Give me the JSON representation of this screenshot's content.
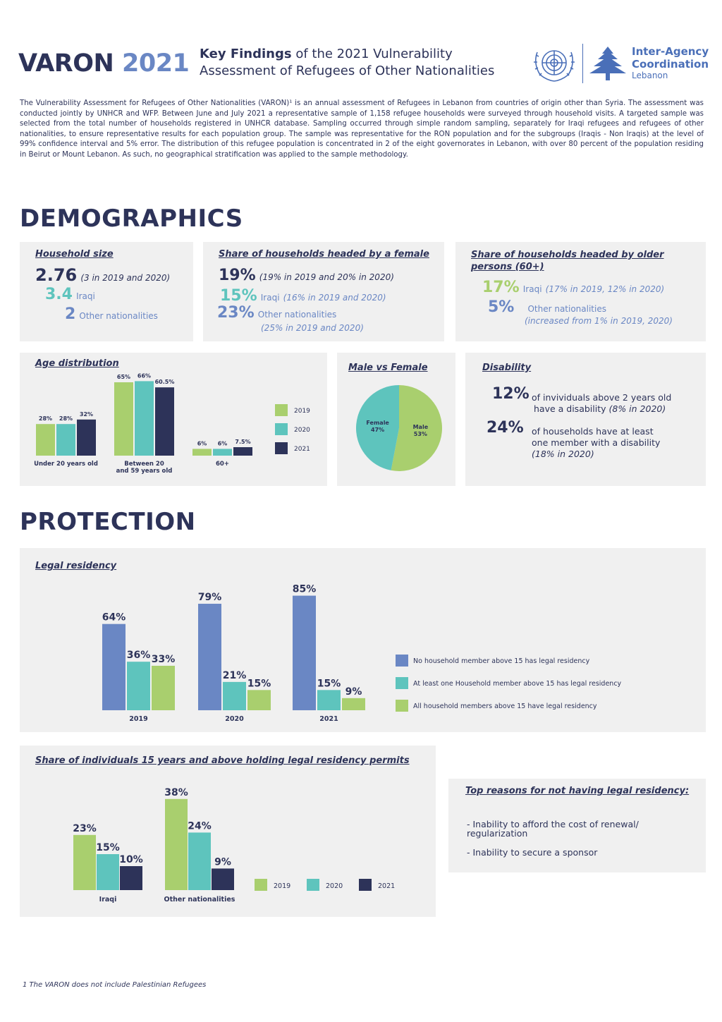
{
  "header": {
    "brand_varon": "VARON",
    "brand_year": "2021",
    "title_bold": "Key Findings",
    "title_line1_rest": " of the 2021 Vulnerability",
    "title_line2": "Assessment of Refugees of Other Nationalities",
    "un_logo": "un-emblem",
    "iac_line1": "Inter-Agency",
    "iac_line2": "Coordination",
    "iac_line3": "Lebanon"
  },
  "intro": "The Vulnerability Assessment for Refugees of Other Nationalities (VARON)¹ is an annual assessment of Refugees in Lebanon from countries of origin other than Syria. The assessment was conducted jointly by UNHCR and WFP. Between June and July 2021 a representative sample of 1,158 refugee households were surveyed through household visits. A targeted sample was selected from the total number of households registered in UNHCR database. Sampling occurred through simple random sampling, separately for Iraqi refugees and refugees of other nationalities, to ensure representative results for each population group. The sample was representative for the RON population and for the subgroups (Iraqis - Non Iraqis) at the level of 99% confidence interval and 5% error. The distribution of this refugee population is concentrated in 2 of the eight governorates in Lebanon, with over 80 percent of the population residing in Beirut or Mount Lebanon. As such, no geographical stratification was applied to the sample methodology.",
  "sections": {
    "demographics": "DEMOGRAPHICS",
    "protection": "PROTECTION"
  },
  "household_size": {
    "title": "Household size",
    "total_value": "2.76",
    "total_note": "(3 in 2019 and 2020)",
    "iraqi_value": "3.4",
    "iraqi_label": "Iraqi",
    "other_value": "2",
    "other_label": "Other nationalities"
  },
  "female_headed": {
    "title": "Share of households headed by a female",
    "total_value": "19%",
    "total_note": "(19% in 2019 and 20% in 2020)",
    "iraqi_value": "15%",
    "iraqi_label": "Iraqi",
    "iraqi_note": "(16% in 2019 and 2020)",
    "other_value": "23%",
    "other_label": "Other nationalities",
    "other_note": "(25% in 2019 and 2020)"
  },
  "older_headed": {
    "title_line1": "Share of households headed by older",
    "title_line2": "persons (60+)",
    "iraqi_value": "17%",
    "iraqi_label": "Iraqi",
    "iraqi_note": "(17% in 2019, 12% in 2020)",
    "other_value": "5%",
    "other_label": "Other nationalities",
    "other_note": "(increased from 1% in 2019, 2020)"
  },
  "age_distribution": {
    "title": "Age distribution",
    "legend": [
      "2019",
      "2020",
      "2021"
    ]
  },
  "male_female": {
    "title": "Male vs Female"
  },
  "disability": {
    "title": "Disability",
    "ind_value": "12%",
    "ind_text1": "of invividuals above 2 years old",
    "ind_text2": "have a disability",
    "ind_note": "(8% in 2020)",
    "hh_value": "24%",
    "hh_text1": "of households have at least",
    "hh_text2": "one member with a disability",
    "hh_note": "(18% in 2020)"
  },
  "legal_residency": {
    "title": "Legal residency"
  },
  "share_individuals": {
    "title": "Share of individuals 15 years and above holding legal residency permits"
  },
  "top_reasons": {
    "title": "Top reasons for not having legal residency:",
    "items": [
      "- Inability to  afford the cost of renewal/ regularization",
      "- Inability to secure a sponsor"
    ]
  },
  "footnote": "1 The VARON does not include Palestinian Refugees",
  "colors": {
    "navy": "#2d3359",
    "blue": "#6a87c4",
    "teal": "#5ec4bd",
    "green": "#a9cf6e",
    "panel": "#f0f0f0"
  },
  "chart_data": [
    {
      "id": "age",
      "type": "bar",
      "categories": [
        "Under 20 years old",
        "Between 20 and 59 years old",
        "60+"
      ],
      "series": [
        {
          "name": "2019",
          "values": [
            28,
            65,
            6
          ],
          "labels": [
            "28%",
            "65%",
            "6%"
          ]
        },
        {
          "name": "2020",
          "values": [
            28,
            66,
            6
          ],
          "labels": [
            "28%",
            "66%",
            "6%"
          ]
        },
        {
          "name": "2021",
          "values": [
            32,
            60.5,
            7.5
          ],
          "labels": [
            "32%",
            "60.5%",
            "7.5%"
          ]
        }
      ],
      "ylim": [
        0,
        70
      ],
      "legend_position": "right"
    },
    {
      "id": "sex",
      "type": "pie",
      "slices": [
        {
          "name": "Male",
          "value": 53,
          "label": "53%"
        },
        {
          "name": "Female",
          "value": 47,
          "label": "47%"
        }
      ]
    },
    {
      "id": "legal",
      "type": "bar",
      "categories": [
        "2019",
        "2020",
        "2021"
      ],
      "series": [
        {
          "name": "No household member above 15 has legal residency",
          "values": [
            64,
            79,
            85
          ],
          "labels": [
            "64%",
            "79%",
            "85%"
          ]
        },
        {
          "name": "At least one Household member above 15 has legal residency",
          "values": [
            36,
            21,
            15
          ],
          "labels": [
            "36%",
            "21%",
            "15%"
          ]
        },
        {
          "name": "All household members above 15 have legal residency",
          "values": [
            33,
            15,
            9
          ],
          "labels": [
            "33%",
            "15%",
            "9%"
          ]
        }
      ],
      "ylim": [
        0,
        90
      ],
      "legend_position": "right"
    },
    {
      "id": "individuals",
      "type": "bar",
      "categories": [
        "Iraqi",
        "Other nationalities"
      ],
      "series": [
        {
          "name": "2019",
          "values": [
            23,
            38
          ],
          "labels": [
            "23%",
            "38%"
          ]
        },
        {
          "name": "2020",
          "values": [
            15,
            24
          ],
          "labels": [
            "15%",
            "24%"
          ]
        },
        {
          "name": "2021",
          "values": [
            10,
            9
          ],
          "labels": [
            "10%",
            "9%"
          ]
        }
      ],
      "ylim": [
        0,
        40
      ],
      "legend_position": "right"
    }
  ]
}
